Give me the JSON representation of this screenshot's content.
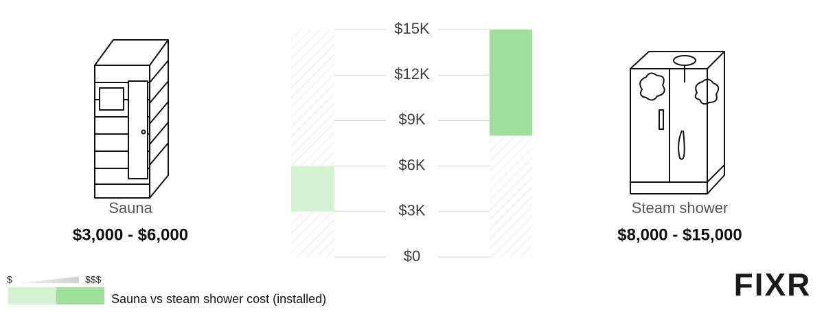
{
  "chart_data": {
    "type": "range_bar",
    "categories": [
      "Sauna",
      "Steam shower"
    ],
    "low": [
      3000,
      8000
    ],
    "high": [
      6000,
      15000
    ],
    "value_labels": [
      "$3,000 - $6,000",
      "$8,000 - $15,000"
    ],
    "colors": [
      "#d4f2d2",
      "#9ddf9b"
    ],
    "ylim": [
      0,
      15000
    ],
    "yticks": [
      {
        "value": 0,
        "label": "$0"
      },
      {
        "value": 3000,
        "label": "$3K"
      },
      {
        "value": 6000,
        "label": "$6K"
      },
      {
        "value": 9000,
        "label": "$9K"
      },
      {
        "value": 12000,
        "label": "$12K"
      },
      {
        "value": 15000,
        "label": "$15K"
      }
    ],
    "grid": true,
    "scale_labels": [
      "$",
      "$$$"
    ],
    "legend_title": "Sauna vs steam shower cost (installed)",
    "logo": "FIXR"
  }
}
